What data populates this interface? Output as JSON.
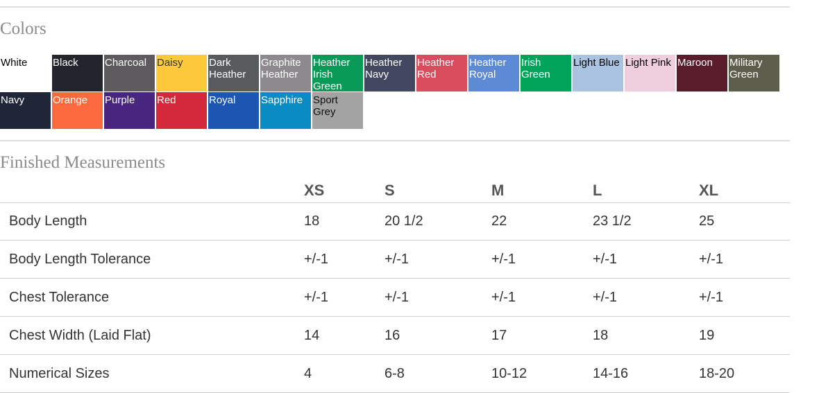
{
  "colors_section": {
    "title": "Colors",
    "swatches": [
      {
        "name": "White",
        "bg": "#ffffff",
        "fg": "#000000"
      },
      {
        "name": "Black",
        "bg": "#22252b",
        "fg": "#ffffff"
      },
      {
        "name": "Charcoal",
        "bg": "#5d5b5d",
        "fg": "#ffffff"
      },
      {
        "name": "Daisy",
        "bg": "#fcc93a",
        "fg": "#333333"
      },
      {
        "name": "Dark Heather",
        "bg": "#585a5e",
        "fg": "#ffffff"
      },
      {
        "name": "Graphite Heather",
        "bg": "#8c8a8c",
        "fg": "#ffffff"
      },
      {
        "name": "Heather Irish Green",
        "bg": "#0a9a57",
        "fg": "#ffffff"
      },
      {
        "name": "Heather Navy",
        "bg": "#41485f",
        "fg": "#ffffff"
      },
      {
        "name": "Heather Red",
        "bg": "#d84c5d",
        "fg": "#ffffff"
      },
      {
        "name": "Heather Royal",
        "bg": "#5d8ad4",
        "fg": "#ffffff"
      },
      {
        "name": "Irish Green",
        "bg": "#02a35a",
        "fg": "#ffffff"
      },
      {
        "name": "Light Blue",
        "bg": "#a9c3e0",
        "fg": "#000000"
      },
      {
        "name": "Light Pink",
        "bg": "#efcfde",
        "fg": "#000000"
      },
      {
        "name": "Maroon",
        "bg": "#5a1c2a",
        "fg": "#ffffff"
      },
      {
        "name": "Military Green",
        "bg": "#5e5e4c",
        "fg": "#ffffff"
      },
      {
        "name": "Navy",
        "bg": "#1f2638",
        "fg": "#ffffff"
      },
      {
        "name": "Orange",
        "bg": "#fb6a3d",
        "fg": "#ffffff"
      },
      {
        "name": "Purple",
        "bg": "#48267f",
        "fg": "#ffffff"
      },
      {
        "name": "Red",
        "bg": "#d4283b",
        "fg": "#ffffff"
      },
      {
        "name": "Royal",
        "bg": "#1c55b2",
        "fg": "#ffffff"
      },
      {
        "name": "Sapphire",
        "bg": "#0b8bc4",
        "fg": "#ffffff"
      },
      {
        "name": "Sport Grey",
        "bg": "#a3a3a3",
        "fg": "#111111"
      }
    ]
  },
  "measurements_section": {
    "title": "Finished Measurements",
    "sizes": [
      "XS",
      "S",
      "M",
      "L",
      "XL"
    ],
    "rows": [
      {
        "label": "Body Length",
        "values": [
          "18",
          "20 1/2",
          "22",
          "23 1/2",
          "25"
        ]
      },
      {
        "label": "Body Length Tolerance",
        "values": [
          "+/-1",
          "+/-1",
          "+/-1",
          "+/-1",
          "+/-1"
        ]
      },
      {
        "label": "Chest Tolerance",
        "values": [
          "+/-1",
          "+/-1",
          "+/-1",
          "+/-1",
          "+/-1"
        ]
      },
      {
        "label": "Chest Width (Laid Flat)",
        "values": [
          "14",
          "16",
          "17",
          "18",
          "19"
        ]
      },
      {
        "label": "Numerical Sizes",
        "values": [
          "4",
          "6-8",
          "10-12",
          "14-16",
          "18-20"
        ]
      }
    ]
  }
}
